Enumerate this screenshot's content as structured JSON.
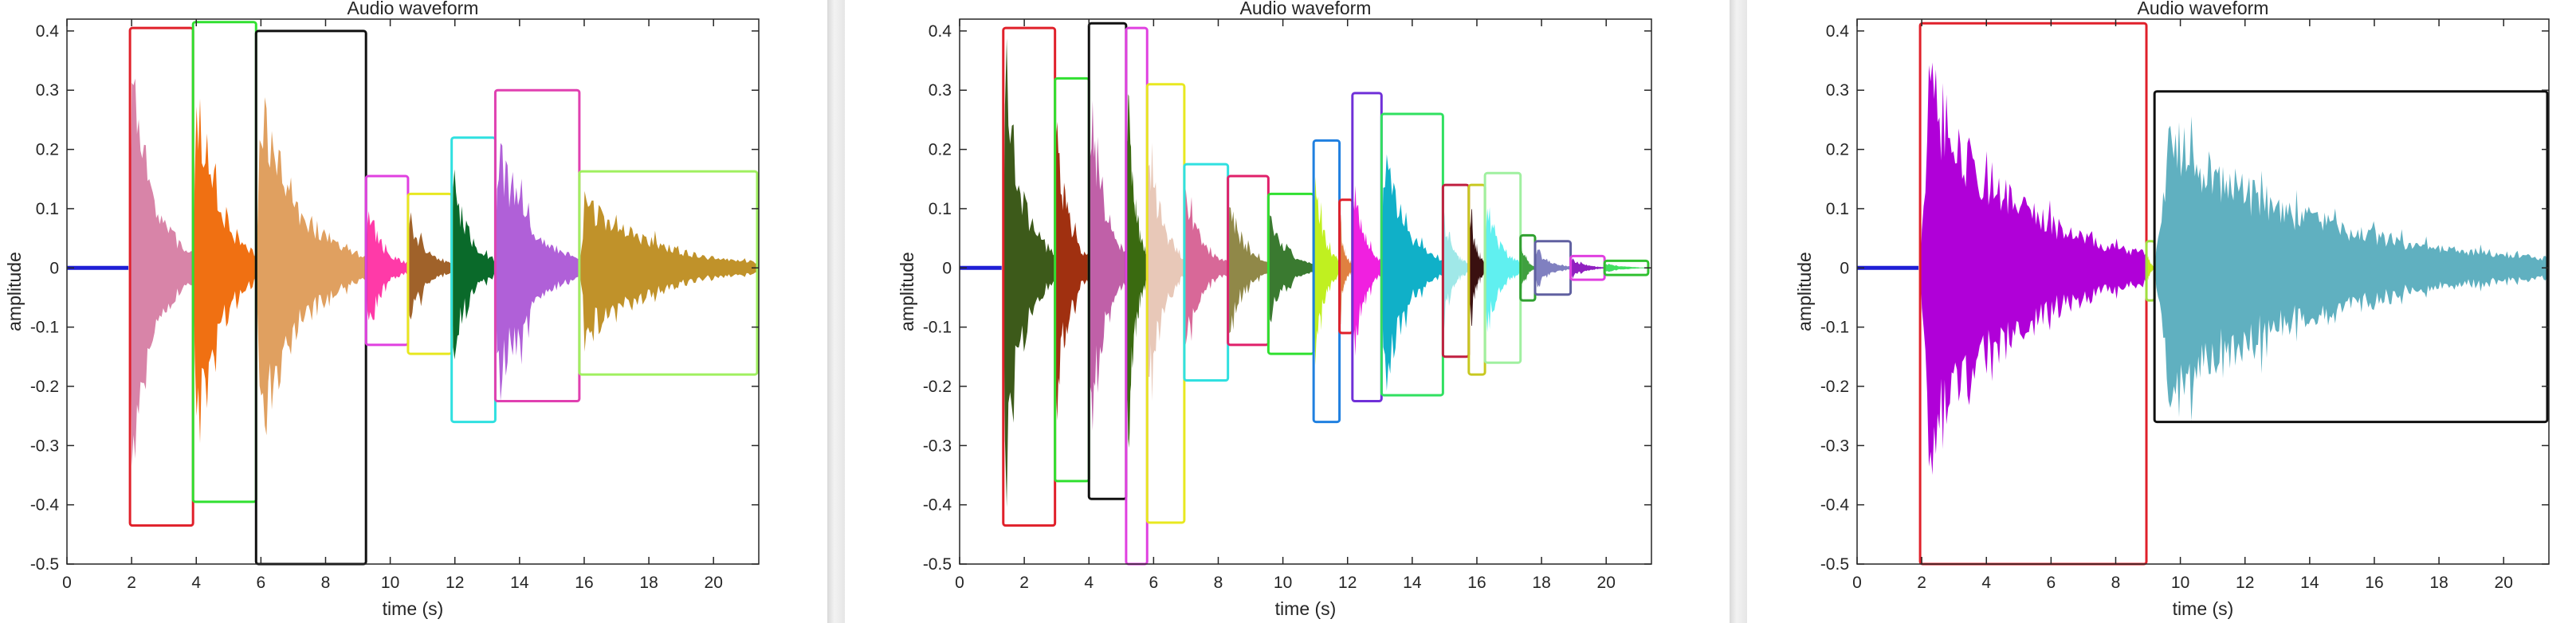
{
  "x_tick_labels": [
    "0",
    "2",
    "4",
    "6",
    "8",
    "10",
    "12",
    "14",
    "16",
    "18",
    "20"
  ],
  "y_tick_labels": [
    "0.4",
    "0.3",
    "0.2",
    "0.1",
    "0",
    "-0.1",
    "-0.2",
    "-0.3",
    "-0.4",
    "-0.5"
  ],
  "chart_data": [
    {
      "type": "area",
      "title": "Audio waveform",
      "xlabel": "time (s)",
      "ylabel": "amplitude",
      "xlim": [
        0,
        21.4
      ],
      "ylim": [
        -0.5,
        0.42
      ],
      "leading_silence": {
        "start": 0,
        "end": 1.9,
        "color": "#1f1fd6"
      },
      "segments": [
        {
          "start": 1.95,
          "end": 3.9,
          "box_min": -0.435,
          "box_max": 0.405,
          "fill": "#d884a8",
          "box": "#e0202a",
          "peak": 0.4
        },
        {
          "start": 3.9,
          "end": 5.85,
          "box_min": -0.395,
          "box_max": 0.415,
          "fill": "#f07012",
          "box": "#30e030",
          "peak": 0.41
        },
        {
          "start": 5.85,
          "end": 9.25,
          "box_min": -0.5,
          "box_max": 0.4,
          "fill": "#e0a060",
          "box": "#101010",
          "peak": 0.36
        },
        {
          "start": 9.25,
          "end": 10.55,
          "box_min": -0.13,
          "box_max": 0.155,
          "fill": "#ff3aa8",
          "box": "#e040e0",
          "peak": 0.13
        },
        {
          "start": 10.55,
          "end": 11.9,
          "box_min": -0.145,
          "box_max": 0.125,
          "fill": "#a0622a",
          "box": "#e8e820",
          "peak": 0.12
        },
        {
          "start": 11.9,
          "end": 13.25,
          "box_min": -0.26,
          "box_max": 0.22,
          "fill": "#0a6a2a",
          "box": "#30e0e0",
          "peak": 0.2
        },
        {
          "start": 13.25,
          "end": 15.85,
          "box_min": -0.225,
          "box_max": 0.3,
          "fill": "#b060d8",
          "box": "#e040b0",
          "peak": 0.28
        },
        {
          "start": 15.85,
          "end": 21.35,
          "box_min": -0.18,
          "box_max": 0.163,
          "fill": "#c0922a",
          "box": "#a0f060",
          "peak": 0.16
        }
      ]
    },
    {
      "type": "area",
      "title": "Audio waveform",
      "xlabel": "time (s)",
      "ylabel": "amplitude",
      "xlim": [
        0,
        21.4
      ],
      "ylim": [
        -0.5,
        0.42
      ],
      "leading_silence": {
        "start": 0,
        "end": 1.3,
        "color": "#1f1fd6"
      },
      "segments": [
        {
          "start": 1.35,
          "end": 2.95,
          "box_min": -0.435,
          "box_max": 0.405,
          "fill": "#3d5a1a",
          "box": "#e0202a",
          "peak": 0.4
        },
        {
          "start": 2.95,
          "end": 4.0,
          "box_min": -0.36,
          "box_max": 0.32,
          "fill": "#a03010",
          "box": "#30e030",
          "peak": 0.3
        },
        {
          "start": 4.0,
          "end": 5.15,
          "box_min": -0.39,
          "box_max": 0.413,
          "fill": "#c060a8",
          "box": "#101010",
          "peak": 0.41
        },
        {
          "start": 5.15,
          "end": 5.8,
          "box_min": -0.5,
          "box_max": 0.405,
          "fill": "#3a6a10",
          "box": "#e040e0",
          "peak": 0.4
        },
        {
          "start": 5.8,
          "end": 6.95,
          "box_min": -0.43,
          "box_max": 0.31,
          "fill": "#e8c8b8",
          "box": "#e8e820",
          "peak": 0.3
        },
        {
          "start": 6.95,
          "end": 8.3,
          "box_min": -0.19,
          "box_max": 0.175,
          "fill": "#d86898",
          "box": "#30e0e0",
          "peak": 0.17
        },
        {
          "start": 8.3,
          "end": 9.55,
          "box_min": -0.13,
          "box_max": 0.155,
          "fill": "#908848",
          "box": "#e0206a",
          "peak": 0.15
        },
        {
          "start": 9.55,
          "end": 10.95,
          "box_min": -0.145,
          "box_max": 0.125,
          "fill": "#3a7a30",
          "box": "#30e030",
          "peak": 0.12
        },
        {
          "start": 10.95,
          "end": 11.75,
          "box_min": -0.26,
          "box_max": 0.215,
          "fill": "#c0f020",
          "box": "#2080e0",
          "peak": 0.2
        },
        {
          "start": 11.75,
          "end": 12.15,
          "box_min": -0.11,
          "box_max": 0.115,
          "fill": "#e08040",
          "box": "#e0202a",
          "peak": 0.11
        },
        {
          "start": 12.15,
          "end": 13.05,
          "box_min": -0.225,
          "box_max": 0.295,
          "fill": "#f020e0",
          "box": "#7030d8",
          "peak": 0.2
        },
        {
          "start": 13.05,
          "end": 14.95,
          "box_min": -0.215,
          "box_max": 0.26,
          "fill": "#10b0c8",
          "box": "#30e060",
          "peak": 0.25
        },
        {
          "start": 14.95,
          "end": 15.75,
          "box_min": -0.15,
          "box_max": 0.14,
          "fill": "#a0e8e8",
          "box": "#c02040",
          "peak": 0.12
        },
        {
          "start": 15.75,
          "end": 16.25,
          "box_min": -0.18,
          "box_max": 0.14,
          "fill": "#3a1010",
          "box": "#c8c820",
          "peak": 0.14
        },
        {
          "start": 16.25,
          "end": 17.35,
          "box_min": -0.16,
          "box_max": 0.16,
          "fill": "#60f0f0",
          "box": "#a0f0a0",
          "peak": 0.15
        },
        {
          "start": 17.35,
          "end": 17.8,
          "box_min": -0.055,
          "box_max": 0.055,
          "fill": "#40a040",
          "box": "#30a030",
          "peak": 0.05
        },
        {
          "start": 17.8,
          "end": 18.9,
          "box_min": -0.045,
          "box_max": 0.045,
          "fill": "#8080c0",
          "box": "#6060a0",
          "peak": 0.04
        },
        {
          "start": 18.9,
          "end": 19.95,
          "box_min": -0.02,
          "box_max": 0.02,
          "fill": "#9020c0",
          "box": "#e040e0",
          "peak": 0.02
        },
        {
          "start": 19.95,
          "end": 21.3,
          "box_min": -0.012,
          "box_max": 0.012,
          "fill": "#40e060",
          "box": "#30c030",
          "peak": 0.01
        }
      ]
    },
    {
      "type": "area",
      "title": "Audio waveform",
      "xlabel": "time (s)",
      "ylabel": "amplitude",
      "xlim": [
        0,
        21.4
      ],
      "ylim": [
        -0.5,
        0.42
      ],
      "leading_silence": {
        "start": 0,
        "end": 1.9,
        "color": "#1f1fd6"
      },
      "segments": [
        {
          "start": 1.95,
          "end": 8.95,
          "box_min": -0.5,
          "box_max": 0.413,
          "fill": "#b000d8",
          "box": "#e0202a",
          "peak": 0.41
        },
        {
          "start": 8.95,
          "end": 9.2,
          "box_min": -0.055,
          "box_max": 0.045,
          "fill": "#c8e820",
          "box": "#a0e040",
          "peak": 0.04
        },
        {
          "start": 9.2,
          "end": 21.35,
          "box_min": -0.26,
          "box_max": 0.298,
          "fill": "#60b0c0",
          "box": "#101010",
          "peak": 0.29
        }
      ]
    }
  ]
}
